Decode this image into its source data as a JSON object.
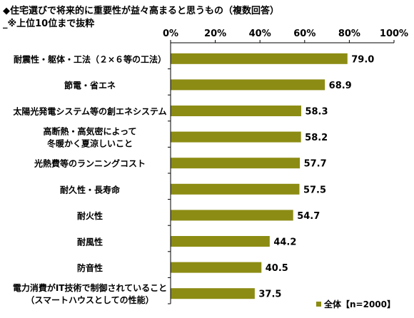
{
  "title": "◆住宅選びで将来的に重要性が益々高まると思うもの（複数回答）",
  "subtitle": "_※上位10位まで抜粋",
  "colors": {
    "bar": "#8c8c14",
    "axis": "#000000"
  },
  "chart_data": {
    "type": "bar",
    "orientation": "horizontal",
    "categories": [
      [
        "耐震性・躯体・工法（２×６等の工法）"
      ],
      [
        "節電・省エネ"
      ],
      [
        "太陽光発電システム等の創エネシステム"
      ],
      [
        "高断熱・高気密によって",
        "冬暖かく夏涼しいこと"
      ],
      [
        "光熱費等のランニングコスト"
      ],
      [
        "耐久性・長寿命"
      ],
      [
        "耐火性"
      ],
      [
        "耐風性"
      ],
      [
        "防音性"
      ],
      [
        "電力消費がIT技術で制御されていること",
        "（スマートハウスとしての性能）"
      ]
    ],
    "series": [
      {
        "name": "全体【n=2000】",
        "values": [
          79.0,
          68.9,
          58.3,
          58.2,
          57.7,
          57.5,
          54.7,
          44.2,
          40.5,
          37.5
        ]
      }
    ],
    "xlim": [
      0,
      100
    ],
    "xticks": [
      "0%",
      "20%",
      "40%",
      "60%",
      "80%",
      "100%"
    ],
    "tick_position": "top",
    "legend_position": "bottom-right",
    "grid": false
  }
}
